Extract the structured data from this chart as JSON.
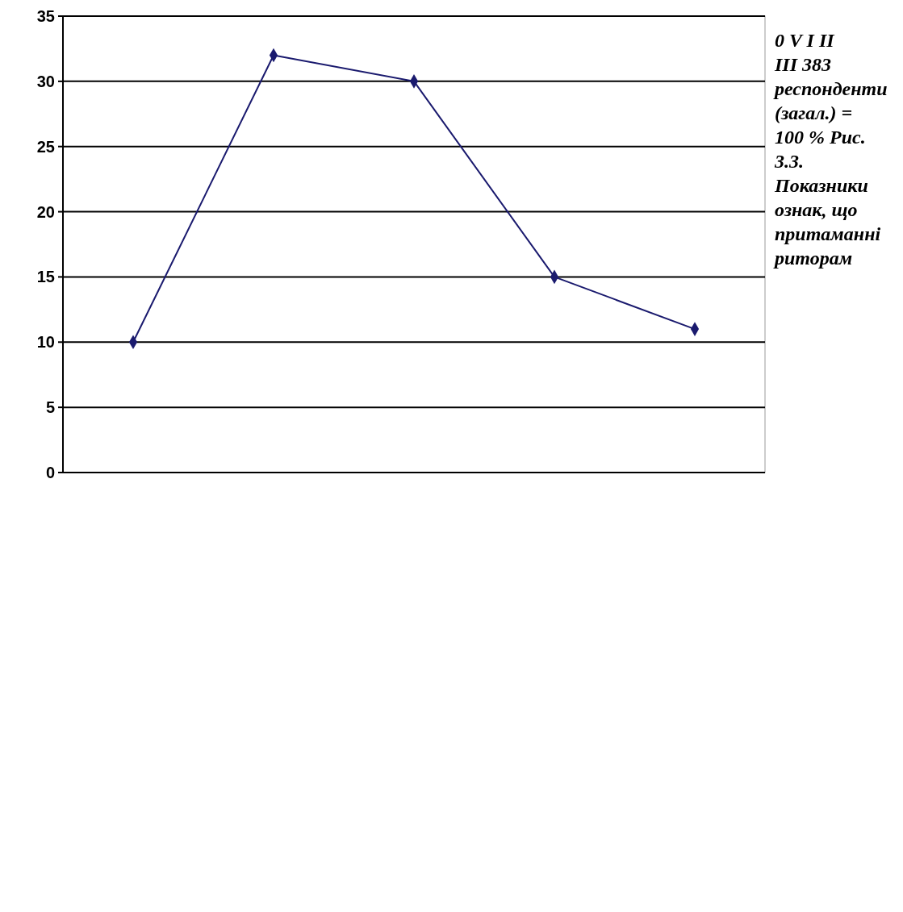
{
  "chart_data": {
    "type": "line",
    "categories": [
      null,
      null,
      null,
      null,
      null
    ],
    "series": [
      {
        "color": "#1a1a6e",
        "values": [
          10,
          32,
          30,
          15,
          11
        ]
      }
    ],
    "ylim": [
      0,
      35
    ],
    "yticks": [
      0,
      5,
      10,
      15,
      20,
      25,
      30,
      35
    ],
    "grid": "y",
    "marker": "diamond",
    "line_style": "solid",
    "annotations": [
      "0 V I II III 383 респонденти (загал.) = 100 % Рис. 3.3. Показники ознак, що притаманні риторам"
    ]
  }
}
